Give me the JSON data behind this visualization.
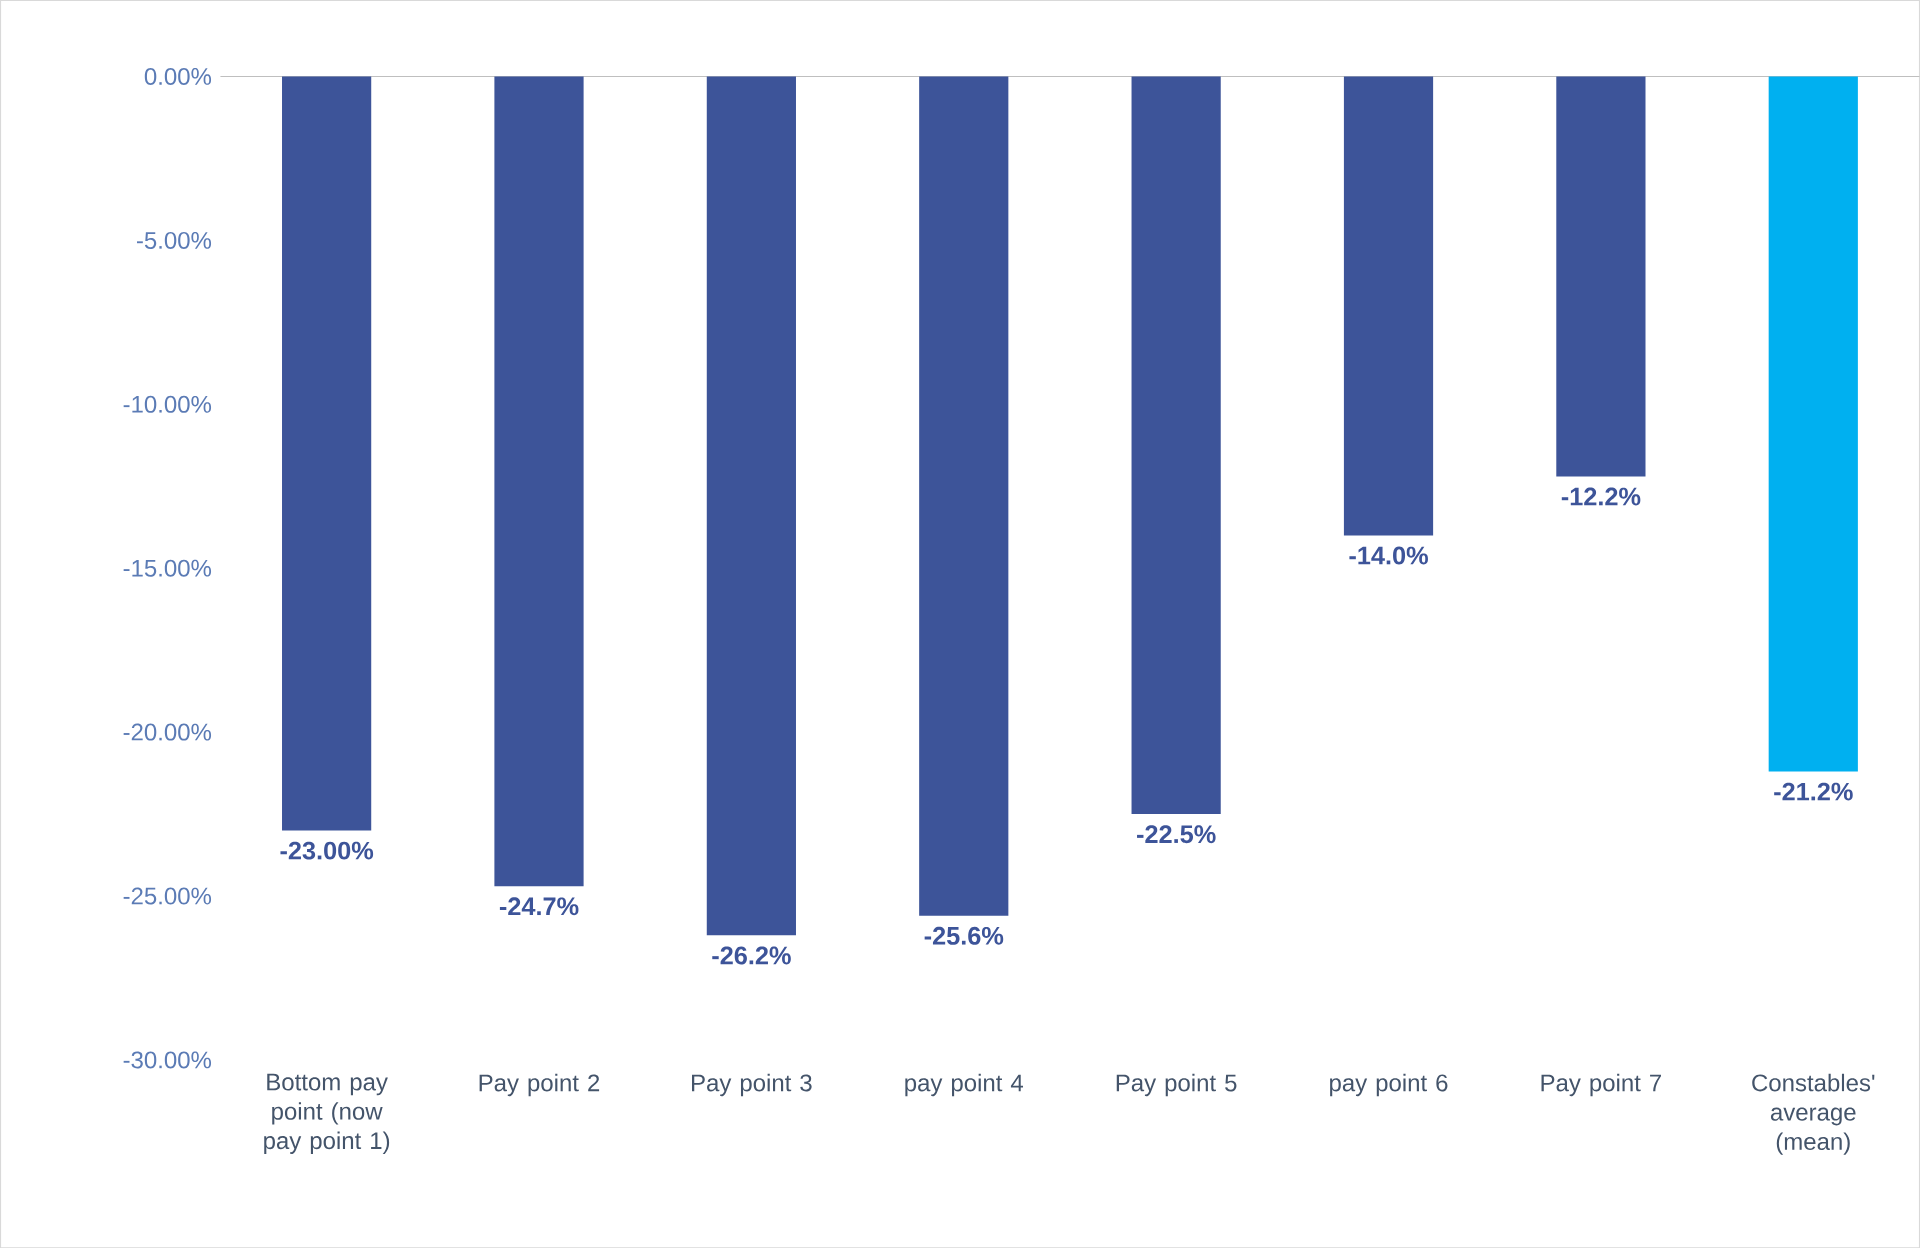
{
  "chart_data": {
    "type": "bar",
    "categories": [
      "Bottom pay point (now pay point 1)",
      "Pay point 2",
      "Pay point 3",
      "pay point 4",
      "Pay point 5",
      "pay point 6",
      "Pay point 7",
      "Constables' average (mean)"
    ],
    "values": [
      -23.0,
      -24.7,
      -26.2,
      -25.6,
      -22.5,
      -14.0,
      -12.2,
      -21.2
    ],
    "value_labels": [
      "-23.00%",
      "-24.7%",
      "-26.2%",
      "-25.6%",
      "-22.5%",
      "-14.0%",
      "-12.2%",
      "-21.2%"
    ],
    "colors": [
      "#3d5499",
      "#3d5499",
      "#3d5499",
      "#3d5499",
      "#3d5499",
      "#3d5499",
      "#3d5499",
      "#00b0f0"
    ],
    "ylim": [
      -30,
      0
    ],
    "yticks": [
      {
        "value": 0,
        "label": "0.00%"
      },
      {
        "value": -5,
        "label": "-5.00%"
      },
      {
        "value": -10,
        "label": "-10.00%"
      },
      {
        "value": -15,
        "label": "-15.00%"
      },
      {
        "value": -20,
        "label": "-20.00%"
      },
      {
        "value": -25,
        "label": "-25.00%"
      },
      {
        "value": -30,
        "label": "-30.00%"
      }
    ],
    "grid": false
  }
}
